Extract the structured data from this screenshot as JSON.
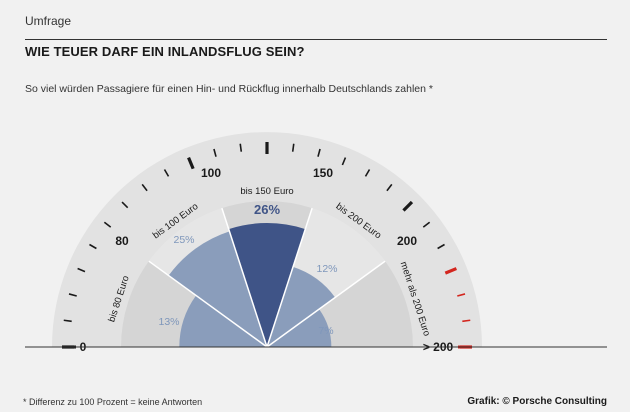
{
  "header": {
    "kicker": "Umfrage",
    "title": "WIE TEUER DARF EIN INLANDSFLUG SEIN?",
    "subtitle": "So viel würden Passagiere für einen Hin- und Rückflug innerhalb Deutschlands zahlen *"
  },
  "footer": {
    "footnote": "* Differenz zu 100 Prozent = keine Antworten",
    "credit": "Grafik: © Porsche Consulting"
  },
  "colors": {
    "background": "#f1f1f1",
    "dial_ring": "#e2e2e2",
    "segment_light": "#e6e6e6",
    "segment_dark": "#d5d5d5",
    "bar_light": "#8a9dbb",
    "bar_highlight": "#3f5487",
    "tick_dark": "#1a1a1a",
    "tick_red": "#d3261e",
    "value_label": "#7f97bb"
  },
  "chart_data": {
    "type": "pie",
    "subtype": "semicircular-polar-area-gauge",
    "unit": "%",
    "categories": [
      "bis 80 Euro",
      "bis 100 Euro",
      "bis 150 Euro",
      "bis 200 Euro",
      "mehr als 200 Euro"
    ],
    "values": [
      13,
      25,
      26,
      12,
      7
    ],
    "value_labels": [
      "13%",
      "25%",
      "26%",
      "12%",
      "7%"
    ],
    "highlight_index": 2,
    "scale": {
      "min": 0,
      "max": 200,
      "major_ticks": [
        {
          "value": 0,
          "label": "0"
        },
        {
          "value": 80,
          "label": "80"
        },
        {
          "value": 100,
          "label": "100"
        },
        {
          "value": 150,
          "label": "150"
        },
        {
          "value": 200,
          "label": "200"
        },
        {
          "value": 220,
          "label": "> 200"
        }
      ],
      "red_zone_start": 200
    }
  }
}
